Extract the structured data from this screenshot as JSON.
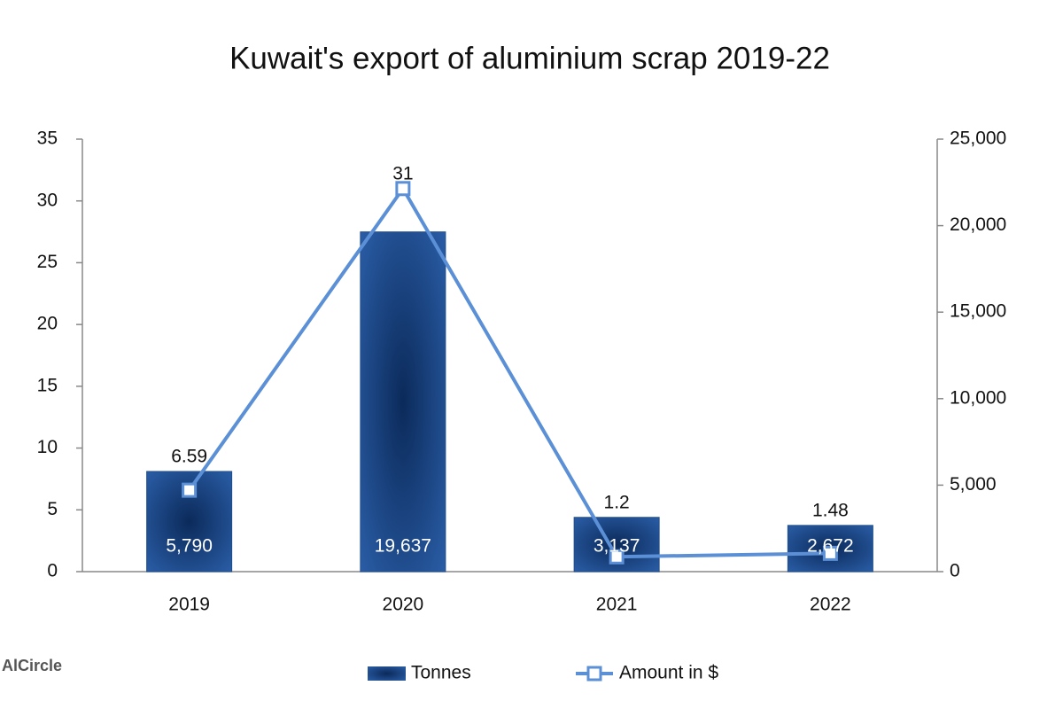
{
  "chart_data": {
    "type": "combo",
    "title": "Kuwait's export of aluminium scrap 2019-22",
    "categories": [
      "2019",
      "2020",
      "2021",
      "2022"
    ],
    "series": [
      {
        "name": "Tonnes",
        "type": "bar",
        "axis": "y2",
        "color": "#1f4e8c",
        "values": [
          5790,
          19637,
          3137,
          2672
        ],
        "value_labels": [
          "5,790",
          "19,637",
          "3,137",
          "2,672"
        ]
      },
      {
        "name": "Amount in $",
        "type": "line",
        "axis": "y",
        "color": "#5b8fd6",
        "values": [
          6.59,
          31,
          1.2,
          1.48
        ]
      }
    ],
    "ylim": [
      0,
      35
    ],
    "yticks": [
      0,
      5,
      10,
      15,
      20,
      25,
      30,
      35
    ],
    "y2lim": [
      0,
      25000
    ],
    "y2ticks": [
      0,
      {
        "value": 5000,
        "label": "5,000"
      },
      {
        "value": 10000,
        "label": "10,000"
      },
      {
        "value": 15000,
        "label": "15,000"
      },
      {
        "value": 20000,
        "label": "20,000"
      },
      {
        "value": 25000,
        "label": "25,000"
      }
    ],
    "grid": false,
    "legend": "bottom",
    "logo": "AlCircle"
  }
}
